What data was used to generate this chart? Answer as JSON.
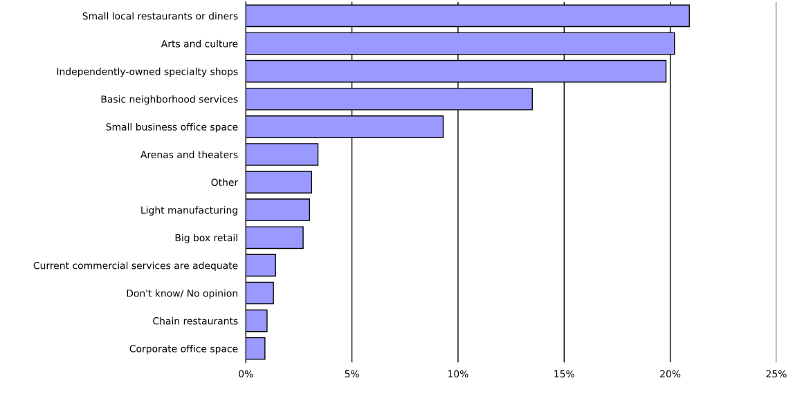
{
  "chart_data": {
    "type": "bar",
    "orientation": "horizontal",
    "categories": [
      "Small local restaurants or diners",
      "Arts and culture",
      "Independently-owned specialty shops",
      "Basic neighborhood services",
      "Small business office space",
      "Arenas and theaters",
      "Other",
      "Light manufacturing",
      "Big box retail",
      "Current commercial services are adequate",
      "Don't know/ No opinion",
      "Chain restaurants",
      "Corporate office space"
    ],
    "values": [
      20.9,
      20.2,
      19.8,
      13.5,
      9.3,
      3.4,
      3.1,
      3.0,
      2.7,
      1.4,
      1.3,
      1.0,
      0.9
    ],
    "color": "#9999ff",
    "xlim": [
      0,
      25
    ],
    "xticks": [
      {
        "value": 0,
        "label": "0%"
      },
      {
        "value": 5,
        "label": "5%"
      },
      {
        "value": 10,
        "label": "10%"
      },
      {
        "value": 15,
        "label": "15%"
      },
      {
        "value": 20,
        "label": "20%"
      },
      {
        "value": 25,
        "label": "25%"
      }
    ],
    "grid": "x"
  }
}
